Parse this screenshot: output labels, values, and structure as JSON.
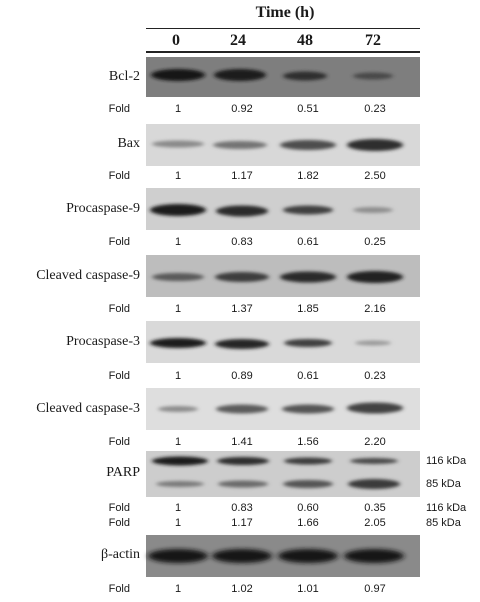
{
  "header": {
    "title": "Time (h)",
    "timepoints": [
      "0",
      "24",
      "48",
      "72"
    ]
  },
  "fold_label": "Fold",
  "blots": [
    {
      "label": "Bcl-2",
      "fold": [
        "1",
        "0.92",
        "0.51",
        "0.23"
      ]
    },
    {
      "label": "Bax",
      "fold": [
        "1",
        "1.17",
        "1.82",
        "2.50"
      ]
    },
    {
      "label": "Procaspase-9",
      "fold": [
        "1",
        "0.83",
        "0.61",
        "0.25"
      ]
    },
    {
      "label": "Cleaved caspase-9",
      "fold": [
        "1",
        "1.37",
        "1.85",
        "2.16"
      ]
    },
    {
      "label": "Procaspase-3",
      "fold": [
        "1",
        "0.89",
        "0.61",
        "0.23"
      ]
    },
    {
      "label": "Cleaved caspase-3",
      "fold": [
        "1",
        "1.41",
        "1.56",
        "2.20"
      ]
    },
    {
      "label": "PARP",
      "markers": [
        "116 kDa",
        "85 kDa"
      ],
      "fold_116": [
        "1",
        "0.83",
        "0.60",
        "0.35"
      ],
      "fold_85": [
        "1",
        "1.17",
        "1.66",
        "2.05"
      ],
      "fold_116_marker": "116 kDa",
      "fold_85_marker": "85 kDa"
    },
    {
      "label": "β-actin",
      "fold": [
        "1",
        "1.02",
        "1.01",
        "0.97"
      ]
    }
  ]
}
